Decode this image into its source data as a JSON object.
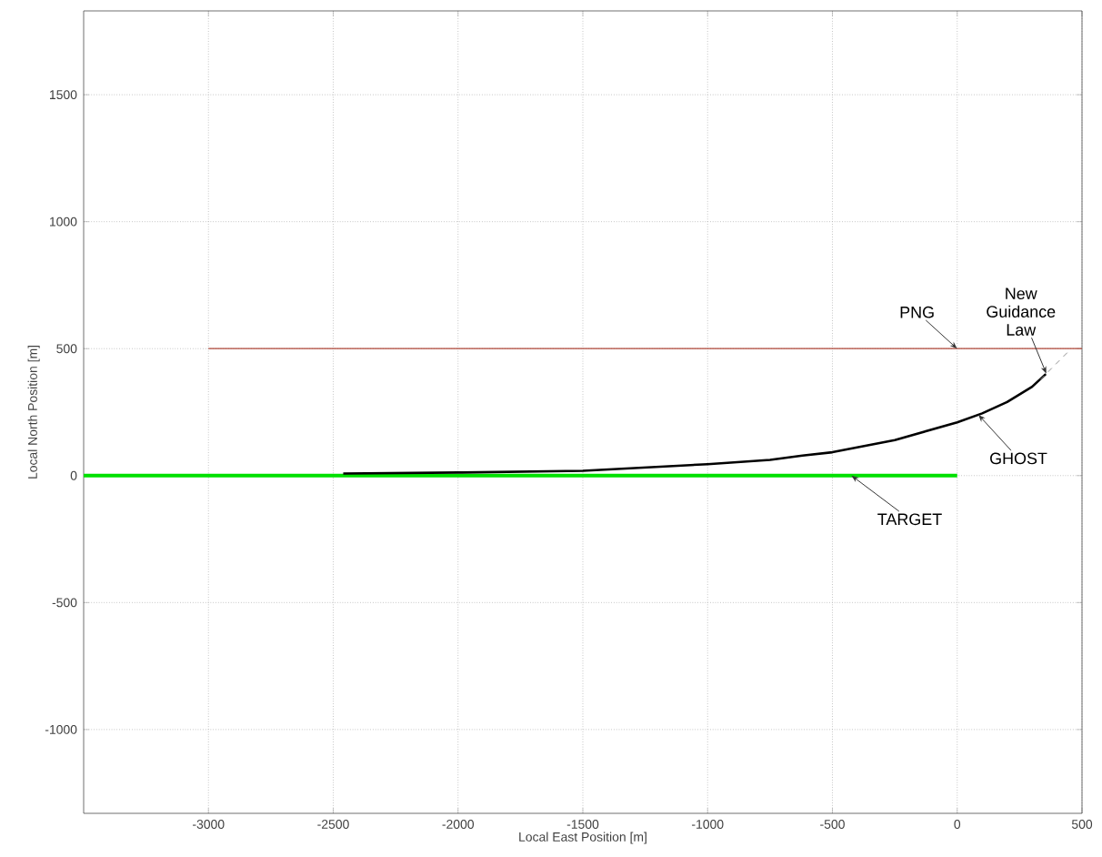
{
  "chart_data": {
    "type": "line",
    "xlabel": "Local East Position [m]",
    "ylabel": "Local North Position [m]",
    "xlim": [
      -3500,
      500
    ],
    "ylim": [
      -1330,
      1830
    ],
    "xticks": [
      -3000,
      -2500,
      -2000,
      -1500,
      -1000,
      -500,
      0,
      500
    ],
    "yticks": [
      -1000,
      -500,
      0,
      500,
      1000,
      1500
    ],
    "grid": true,
    "marker": "none",
    "series": [
      {
        "name": "TARGET",
        "color": "#00e000",
        "line_style": "solid",
        "x": [
          -3500,
          0
        ],
        "values": [
          0,
          0
        ]
      },
      {
        "name": "PNG",
        "color": "#b0483a",
        "line_style": "solid",
        "x": [
          -3000,
          500
        ],
        "values": [
          500,
          500
        ]
      },
      {
        "name": "GHOST",
        "color": "#000000",
        "line_style": "solid",
        "x": [
          -2460,
          -2000,
          -1500,
          -1000,
          -750,
          -620,
          -500,
          -250,
          0,
          100,
          200,
          300,
          355
        ],
        "values": [
          8,
          12,
          19,
          45,
          62,
          79,
          92,
          140,
          210,
          245,
          290,
          350,
          400
        ]
      },
      {
        "name": "New Guidance Law",
        "color": "#909090",
        "line_style": "dashed",
        "x": [
          333,
          453
        ],
        "values": [
          378,
          496
        ]
      }
    ]
  }
}
